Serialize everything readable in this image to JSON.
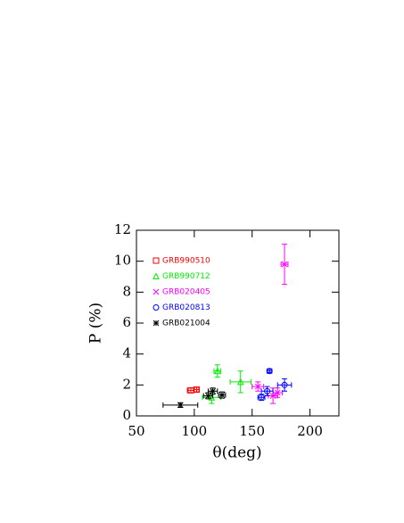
{
  "chart_data": {
    "type": "scatter",
    "x_label": "θ(deg)",
    "y_label": "P  (%)",
    "xlim": [
      50,
      225
    ],
    "ylim": [
      0,
      12
    ],
    "xticks": [
      50,
      100,
      150,
      200
    ],
    "yticks": [
      0,
      2,
      4,
      6,
      8,
      10,
      12
    ],
    "legend": "upper left",
    "series": [
      {
        "name": "GRB990510",
        "color": "#ff0000",
        "marker": "square",
        "x": [
          97,
          102
        ],
        "values": [
          1.65,
          1.7
        ],
        "xerr": [
          3,
          2
        ],
        "yerr": [
          0.15,
          0.15
        ]
      },
      {
        "name": "GRB990712",
        "color": "#00ee00",
        "marker": "triangle",
        "x": [
          120,
          140,
          115
        ],
        "values": [
          2.9,
          2.2,
          1.2
        ],
        "xerr": [
          3,
          9,
          8
        ],
        "yerr": [
          0.4,
          0.7,
          0.4
        ]
      },
      {
        "name": "GRB020405",
        "color": "#ff00ff",
        "marker": "cross",
        "x": [
          178,
          155,
          168,
          172
        ],
        "values": [
          9.8,
          1.9,
          1.3,
          1.5
        ],
        "xerr": [
          3,
          5,
          4,
          4
        ],
        "yerr": [
          1.3,
          0.3,
          0.5,
          0.3
        ]
      },
      {
        "name": "GRB020813",
        "color": "#0000ff",
        "marker": "circle",
        "x": [
          165,
          163,
          158,
          178
        ],
        "values": [
          2.9,
          1.6,
          1.2,
          2.0
        ],
        "xerr": [
          2,
          5,
          3,
          6
        ],
        "yerr": [
          0.1,
          0.3,
          0.2,
          0.4
        ]
      },
      {
        "name": "GRB021004",
        "color": "#000000",
        "marker": "star",
        "x": [
          88,
          116,
          112,
          124
        ],
        "values": [
          0.7,
          1.6,
          1.3,
          1.35
        ],
        "xerr": [
          15,
          4,
          4,
          3
        ],
        "yerr": [
          0.15,
          0.2,
          0.2,
          0.2
        ]
      }
    ]
  }
}
